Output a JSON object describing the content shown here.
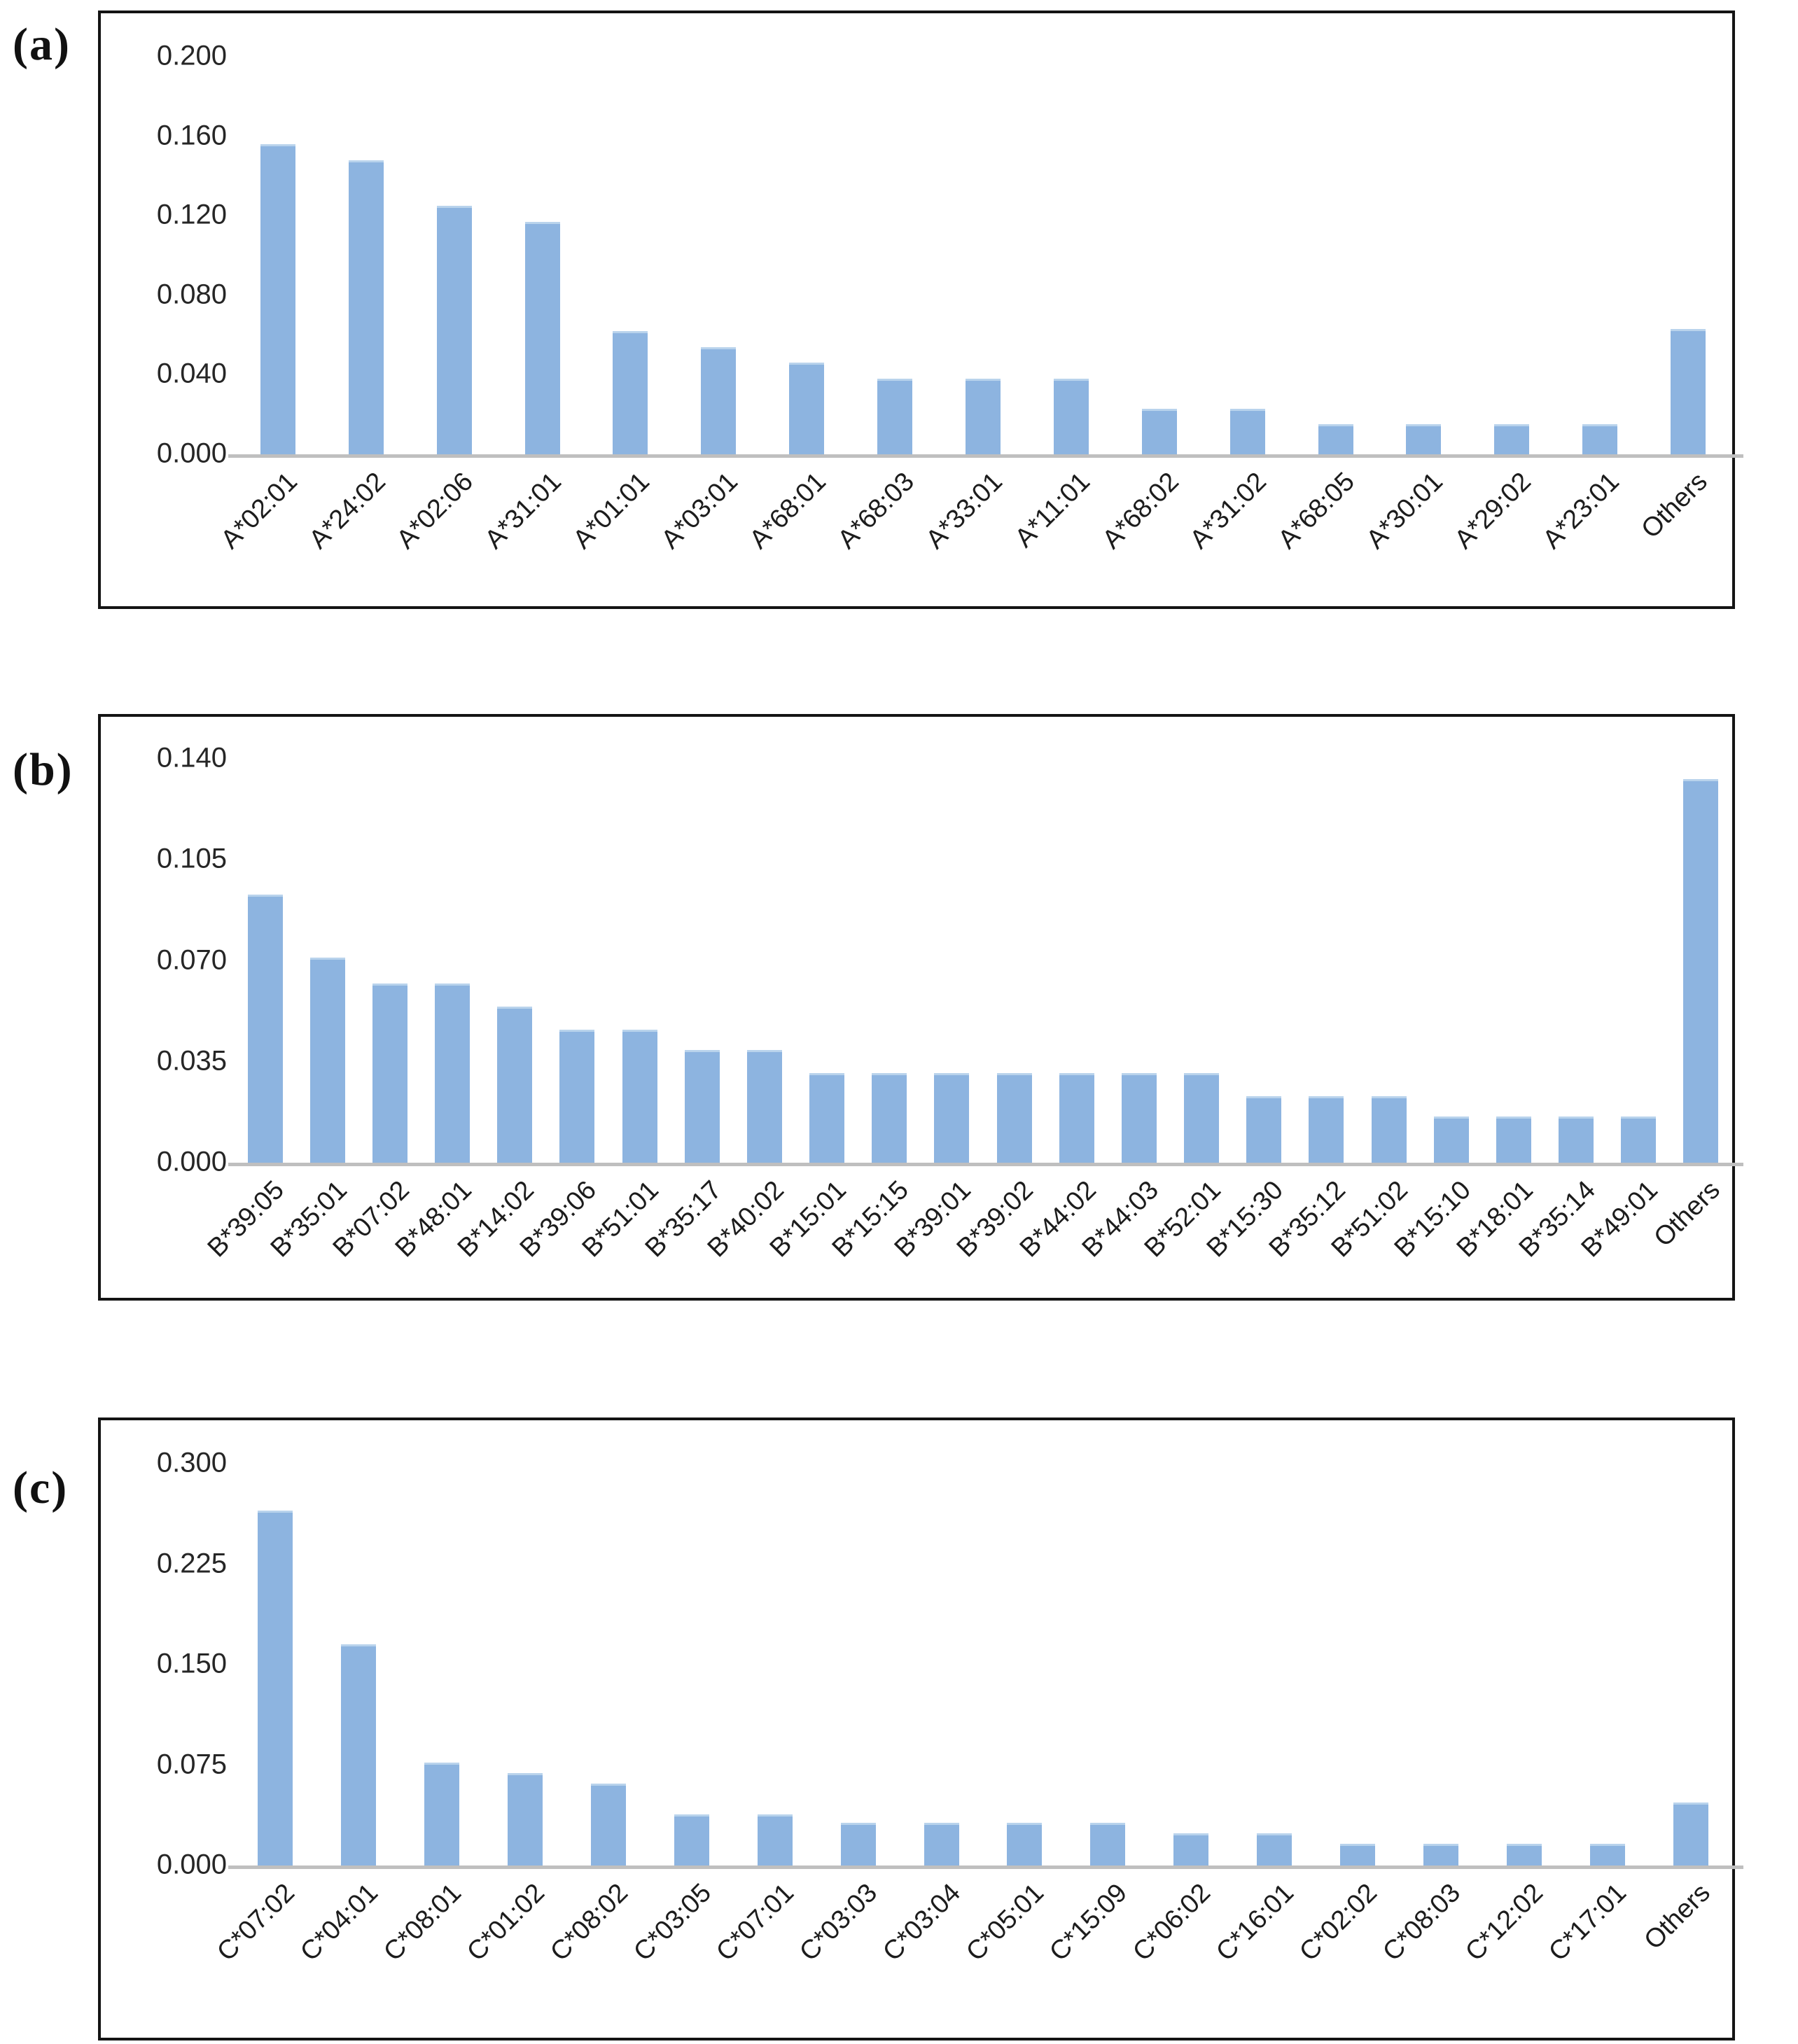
{
  "style": {
    "background": "#ffffff",
    "bar_color": "#8db4e0",
    "bar_top_edge_color": "#b9d3ec",
    "axis_line_color": "#bfbfbf",
    "box_border_color": "#141414",
    "tick_text_color": "#262626",
    "label_text_color": "#1c1c1c"
  },
  "chart_data": [
    {
      "type": "bar",
      "panel_label": "(a)",
      "title": "",
      "xlabel": "",
      "ylabel": "",
      "ylim": [
        0,
        0.2
      ],
      "yticks": [
        "0.200",
        "0.160",
        "0.120",
        "0.080",
        "0.040",
        "0.000"
      ],
      "grid": false,
      "legend_position": "none",
      "categories": [
        "A*02:01",
        "A*24:02",
        "A*02:06",
        "A*31:01",
        "A*01:01",
        "A*03:01",
        "A*68:01",
        "A*68:03",
        "A*33:01",
        "A*11:01",
        "A*68:02",
        "A*31:02",
        "A*68:05",
        "A*30:01",
        "A*29:02",
        "A*23:01",
        "Others"
      ],
      "values": [
        0.156,
        0.148,
        0.125,
        0.117,
        0.062,
        0.054,
        0.046,
        0.038,
        0.038,
        0.038,
        0.023,
        0.023,
        0.015,
        0.015,
        0.015,
        0.015,
        0.063
      ]
    },
    {
      "type": "bar",
      "panel_label": "(b)",
      "title": "",
      "xlabel": "",
      "ylabel": "",
      "ylim": [
        0,
        0.14
      ],
      "yticks": [
        "0.140",
        "0.105",
        "0.070",
        "0.035",
        "0.000"
      ],
      "grid": false,
      "legend_position": "none",
      "categories": [
        "B*39:05",
        "B*35:01",
        "B*07:02",
        "B*48:01",
        "B*14:02",
        "B*39:06",
        "B*51:01",
        "B*35:17",
        "B*40:02",
        "B*15:01",
        "B*15:15",
        "B*39:01",
        "B*39:02",
        "B*44:02",
        "B*44:03",
        "B*52:01",
        "B*15:30",
        "B*35:12",
        "B*51:02",
        "B*15:10",
        "B*18:01",
        "B*35:14",
        "B*49:01",
        "Others"
      ],
      "values": [
        0.093,
        0.071,
        0.062,
        0.062,
        0.054,
        0.046,
        0.046,
        0.039,
        0.039,
        0.031,
        0.031,
        0.031,
        0.031,
        0.031,
        0.031,
        0.031,
        0.023,
        0.023,
        0.023,
        0.016,
        0.016,
        0.016,
        0.016,
        0.133
      ]
    },
    {
      "type": "bar",
      "panel_label": "(c)",
      "title": "",
      "xlabel": "",
      "ylabel": "",
      "ylim": [
        0,
        0.3
      ],
      "yticks": [
        "0.300",
        "0.225",
        "0.150",
        "0.075",
        "0.000"
      ],
      "grid": false,
      "legend_position": "none",
      "categories": [
        "C*07:02",
        "C*04:01",
        "C*08:01",
        "C*01:02",
        "C*08:02",
        "C*03:05",
        "C*07:01",
        "C*03:03",
        "C*03:04",
        "C*05:01",
        "C*15:09",
        "C*06:02",
        "C*16:01",
        "C*02:02",
        "C*08:03",
        "C*12:02",
        "C*17:01",
        "Others"
      ],
      "values": [
        0.265,
        0.165,
        0.077,
        0.069,
        0.061,
        0.038,
        0.038,
        0.032,
        0.032,
        0.032,
        0.032,
        0.024,
        0.024,
        0.016,
        0.016,
        0.016,
        0.016,
        0.047
      ]
    }
  ]
}
